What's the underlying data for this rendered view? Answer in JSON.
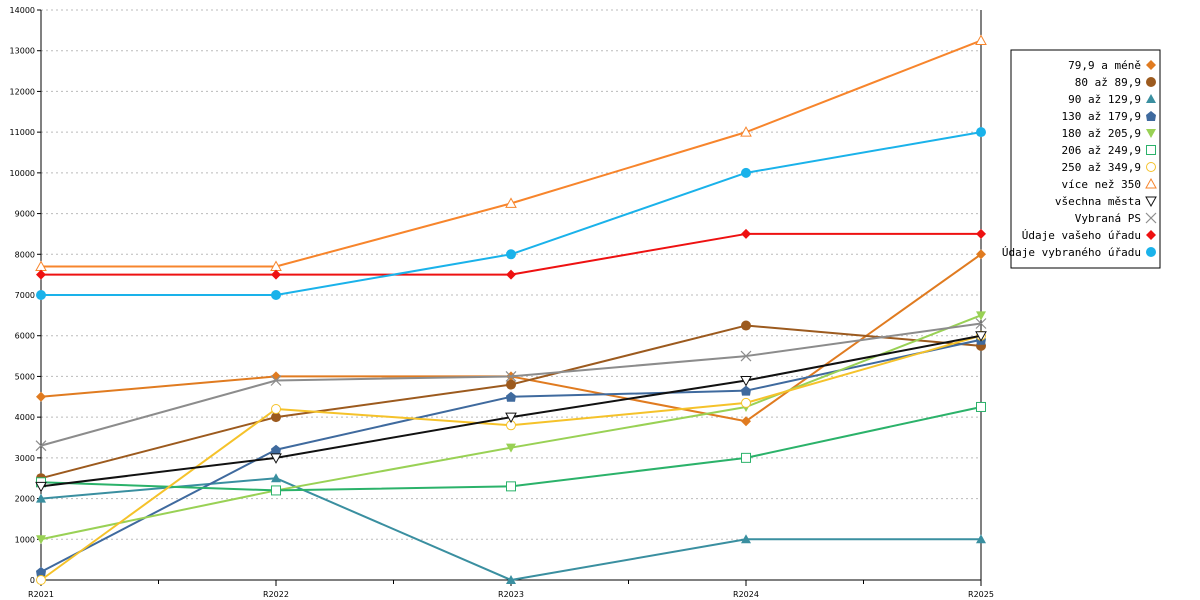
{
  "chart_data": {
    "type": "line",
    "title": "",
    "xlabel": "",
    "ylabel": "",
    "categories": [
      "R2021",
      "R2022",
      "R2023",
      "R2024",
      "R2025"
    ],
    "ylim": [
      0,
      14000
    ],
    "yticks": [
      "0",
      "1000",
      "2000",
      "3000",
      "4000",
      "5000",
      "6000",
      "7000",
      "8000",
      "9000",
      "10000",
      "11000",
      "12000",
      "13000",
      "14000"
    ],
    "grid": true,
    "legend_position": "right",
    "series": [
      {
        "name": "79,9 a méně",
        "color": "#e07b20",
        "marker": "diamond",
        "values": [
          4500,
          5000,
          5000,
          3900,
          8000
        ]
      },
      {
        "name": "80 až 89,9",
        "color": "#9c5a1e",
        "marker": "circle",
        "values": [
          2500,
          4000,
          4800,
          6250,
          5750
        ]
      },
      {
        "name": "90 až 129,9",
        "color": "#3a8fa0",
        "marker": "triangle",
        "values": [
          2000,
          2500,
          0,
          1000,
          1000
        ]
      },
      {
        "name": "130 až 179,9",
        "color": "#3f6a9e",
        "marker": "pentagon",
        "values": [
          200,
          3200,
          4500,
          4650,
          5900
        ]
      },
      {
        "name": "180 až 205,9",
        "color": "#99d155",
        "marker": "triangle-down",
        "values": [
          1000,
          2200,
          3250,
          4250,
          6500
        ]
      },
      {
        "name": "206 až 249,9",
        "color": "#2bb26a",
        "marker": "square-open",
        "values": [
          2400,
          2200,
          2300,
          3000,
          4250
        ]
      },
      {
        "name": "250 až 349,9",
        "color": "#f5c22a",
        "marker": "circle-open",
        "values": [
          0,
          4200,
          3800,
          4350,
          6000
        ]
      },
      {
        "name": "více než 350",
        "color": "#f7852c",
        "marker": "triangle-open",
        "values": [
          7700,
          7700,
          9250,
          11000,
          13250
        ]
      },
      {
        "name": "všechna města",
        "color": "#111111",
        "marker": "triangle-down-open",
        "values": [
          2300,
          3000,
          4000,
          4900,
          6000
        ]
      },
      {
        "name": "Vybraná PS",
        "color": "#8c8c8c",
        "marker": "cross",
        "values": [
          3300,
          4900,
          5000,
          5500,
          6300
        ]
      },
      {
        "name": "Údaje vašeho úřadu",
        "color": "#ee1111",
        "marker": "diamond",
        "values": [
          7500,
          7500,
          7500,
          8500,
          8500
        ]
      },
      {
        "name": "Údaje vybraného úřadu",
        "color": "#1ab2ea",
        "marker": "circle",
        "values": [
          7000,
          7000,
          8000,
          10000,
          11000
        ]
      }
    ]
  }
}
